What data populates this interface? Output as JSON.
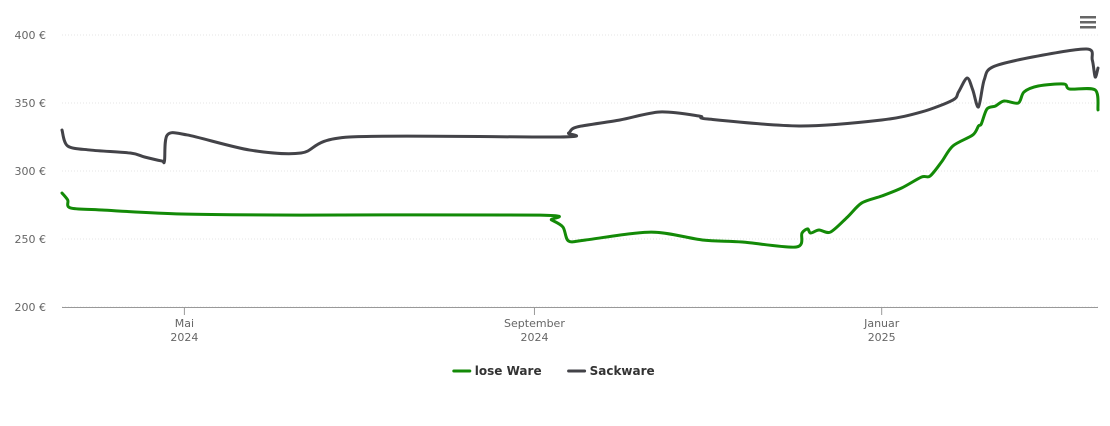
{
  "chart_data": {
    "type": "line",
    "xlim": [
      "2024-03-19",
      "2025-03-18"
    ],
    "xticks": [
      {
        "value": "2024-05-01",
        "label": [
          "Mai",
          "2024"
        ]
      },
      {
        "value": "2024-09-01",
        "label": [
          "September",
          "2024"
        ]
      },
      {
        "value": "2025-01-01",
        "label": [
          "Januar",
          "2025"
        ]
      }
    ],
    "ylim": [
      200,
      400
    ],
    "yticks": [
      {
        "value": 200,
        "label": "200 €"
      },
      {
        "value": 250,
        "label": "250 €"
      },
      {
        "value": 300,
        "label": "300 €"
      },
      {
        "value": 350,
        "label": "350 €"
      },
      {
        "value": 400,
        "label": "400 €"
      }
    ],
    "grid": true,
    "legend": "bottom",
    "series": [
      {
        "name": "lose Ware",
        "color": "#138a07",
        "x": [
          "2024-03-19",
          "2024-03-21",
          "2024-03-22",
          "2024-04-02",
          "2024-04-30",
          "2024-06-11",
          "2024-09-03",
          "2024-09-07",
          "2024-09-11",
          "2024-09-13",
          "2024-09-19",
          "2024-10-12",
          "2024-10-30",
          "2024-11-13",
          "2024-12-02",
          "2024-12-04",
          "2024-12-06",
          "2024-12-07",
          "2024-12-10",
          "2024-12-14",
          "2024-12-20",
          "2024-12-25",
          "2025-01-01",
          "2025-01-08",
          "2025-01-15",
          "2025-01-18",
          "2025-01-22",
          "2025-01-26",
          "2025-02-02",
          "2025-02-04",
          "2025-02-05",
          "2025-02-07",
          "2025-02-10",
          "2025-02-13",
          "2025-02-18",
          "2025-02-20",
          "2025-02-25",
          "2025-03-06",
          "2025-03-08",
          "2025-03-17",
          "2025-03-18"
        ],
        "values": [
          283.8,
          278.7,
          272.8,
          271.3,
          268.4,
          267.6,
          267.6,
          264,
          258.8,
          248.5,
          249.3,
          255.1,
          249.3,
          247.8,
          244.1,
          254.4,
          257.4,
          254.4,
          256.6,
          255.1,
          266.2,
          276.5,
          281.6,
          287.5,
          295.6,
          296.3,
          306.6,
          318.4,
          326.5,
          333.1,
          334.6,
          345.6,
          347.8,
          351.5,
          350,
          358.1,
          362.5,
          364,
          360.3,
          359.6,
          344.9
        ]
      },
      {
        "name": "Sackware",
        "color": "#434348",
        "x": [
          "2024-03-19",
          "2024-03-21",
          "2024-03-29",
          "2024-04-12",
          "2024-04-17",
          "2024-04-23",
          "2024-04-24",
          "2024-04-25",
          "2024-05-02",
          "2024-05-24",
          "2024-06-11",
          "2024-06-28",
          "2024-09-10",
          "2024-09-13",
          "2024-09-16",
          "2024-10-01",
          "2024-10-15",
          "2024-10-29",
          "2024-11-01",
          "2024-12-03",
          "2025-01-01",
          "2025-01-15",
          "2025-01-26",
          "2025-01-28",
          "2025-01-31",
          "2025-02-02",
          "2025-02-04",
          "2025-02-06",
          "2025-02-09",
          "2025-02-23",
          "2025-03-14",
          "2025-03-16",
          "2025-03-17",
          "2025-03-18"
        ],
        "values": [
          330.1,
          318.4,
          315.4,
          313.2,
          310.3,
          307.4,
          307.4,
          326.5,
          326.5,
          315.4,
          313.2,
          325,
          325,
          327.9,
          332.4,
          337.5,
          343.4,
          340.4,
          338.2,
          333.1,
          337.5,
          343.4,
          352.2,
          358.1,
          368.4,
          359.6,
          347.1,
          366.9,
          376.5,
          383.8,
          389.7,
          381.6,
          369.1,
          375.7
        ]
      }
    ]
  }
}
